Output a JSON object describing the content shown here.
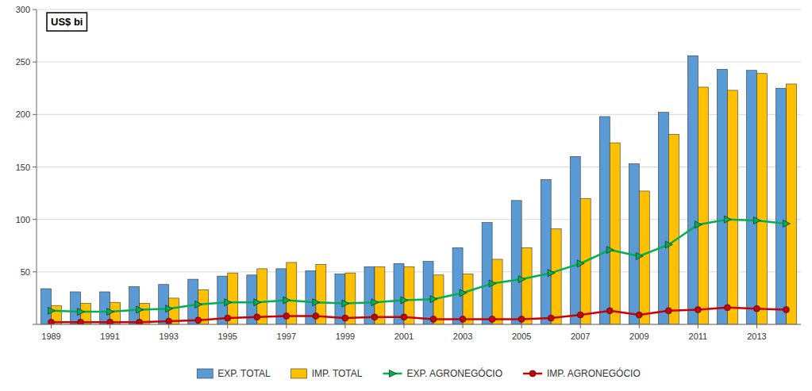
{
  "chart_data": {
    "type": "bar",
    "ylabel": "US$ bi",
    "categories": [
      "1989",
      null,
      "1991",
      null,
      "1993",
      null,
      "1995",
      null,
      "1997",
      null,
      "1999",
      null,
      "2001",
      null,
      "2003",
      null,
      "2005",
      null,
      "2007",
      null,
      "2009",
      null,
      "2011",
      null,
      "2013",
      null
    ],
    "series": [
      {
        "name": "EXP. TOTAL",
        "type": "bar",
        "color": "#5b9bd5",
        "values": [
          34,
          31,
          31,
          36,
          38,
          43,
          46,
          47,
          53,
          51,
          48,
          55,
          58,
          60,
          73,
          97,
          118,
          138,
          160,
          198,
          153,
          202,
          256,
          243,
          242,
          225
        ]
      },
      {
        "name": "IMP. TOTAL",
        "type": "bar",
        "color": "#ffc000",
        "values": [
          18,
          20,
          21,
          20,
          25,
          33,
          49,
          53,
          59,
          57,
          49,
          55,
          55,
          47,
          48,
          62,
          73,
          91,
          120,
          173,
          127,
          181,
          226,
          223,
          239,
          229
        ]
      },
      {
        "name": "EXP. AGRONEGÓCIO",
        "type": "line",
        "color": "#00b050",
        "marker": "triangle-right",
        "values": [
          13,
          12,
          12,
          14,
          15,
          19,
          21,
          21,
          23,
          21,
          20,
          21,
          23,
          24,
          30,
          39,
          43,
          49,
          58,
          71,
          65,
          76,
          95,
          100,
          99,
          96
        ]
      },
      {
        "name": "IMP. AGRONEGÓCIO",
        "type": "line",
        "color": "#cc0000",
        "marker": "circle",
        "values": [
          2,
          2,
          2,
          2,
          3,
          4,
          6,
          7,
          8,
          8,
          6,
          7,
          7,
          5,
          5,
          5,
          5,
          6,
          9,
          13,
          9,
          13,
          14,
          16,
          15,
          14
        ]
      }
    ],
    "ylim": [
      0,
      300
    ],
    "yticks": [
      {
        "value": 0,
        "label": null
      },
      50,
      100,
      150,
      200,
      250,
      300
    ],
    "grid": true,
    "legend": "bottom"
  }
}
